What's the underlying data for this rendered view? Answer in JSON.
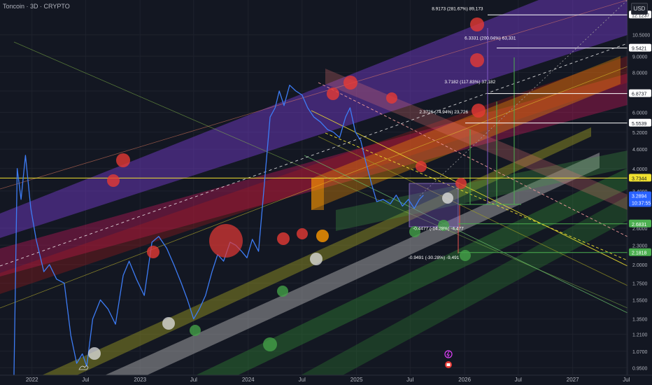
{
  "header": {
    "title": "Toncoin · 3D · CRYPTO",
    "currency": "USD"
  },
  "chart_data": {
    "type": "line",
    "symbol": "Toncoin",
    "interval": "3D",
    "exchange": "CRYPTO",
    "yscale": "log",
    "ylim": [
      0.9,
      13.5
    ],
    "xlim": [
      "2021-09-15",
      "2027-07-05"
    ],
    "x_ticks": [
      {
        "label": "2022",
        "date": "2022-01-01"
      },
      {
        "label": "Jul",
        "date": "2022-07-01"
      },
      {
        "label": "2023",
        "date": "2023-01-01"
      },
      {
        "label": "Jul",
        "date": "2023-07-01"
      },
      {
        "label": "2024",
        "date": "2024-01-01"
      },
      {
        "label": "Jul",
        "date": "2024-07-01"
      },
      {
        "label": "2025",
        "date": "2025-01-01"
      },
      {
        "label": "Jul",
        "date": "2025-07-01"
      },
      {
        "label": "2026",
        "date": "2026-01-01"
      },
      {
        "label": "Jul",
        "date": "2026-07-01"
      },
      {
        "label": "2027",
        "date": "2027-01-01"
      },
      {
        "label": "Jul",
        "date": "2027-07-01"
      }
    ],
    "y_ticks": [
      "10.5000",
      "9.0000",
      "8.0000",
      "7.0000",
      "6.0000",
      "5.2000",
      "4.6000",
      "4.0000",
      "3.4000",
      "2.6000",
      "2.3000",
      "2.0000",
      "1.7500",
      "1.5500",
      "1.3500",
      "1.2100",
      "1.0700",
      "0.9500"
    ],
    "price_labels": [
      {
        "text": "12.1237",
        "value": 12.1237,
        "bg": "#ffffff",
        "fg": "#131722"
      },
      {
        "text": "9.5421",
        "value": 9.5421,
        "bg": "#ffffff",
        "fg": "#131722"
      },
      {
        "text": "6.8737",
        "value": 6.8737,
        "bg": "#ffffff",
        "fg": "#131722"
      },
      {
        "text": "5.5539",
        "value": 5.5539,
        "bg": "#ffffff",
        "fg": "#131722"
      },
      {
        "text": "3.7344",
        "value": 3.7344,
        "bg": "#f0e130",
        "fg": "#131722"
      },
      {
        "text": "3.2894",
        "value": 3.2894,
        "bg": "#2962ff",
        "fg": "#ffffff",
        "sub": "10:37:55"
      },
      {
        "text": "2.6831",
        "value": 2.6831,
        "bg": "#4caf50",
        "fg": "#ffffff"
      },
      {
        "text": "2.1818",
        "value": 2.1818,
        "bg": "#4caf50",
        "fg": "#ffffff"
      }
    ],
    "annotations": [
      {
        "text": "8.9173 (281.67%) 89,173",
        "date": "2025-09-12",
        "value": 12.55,
        "color": "#ffffff"
      },
      {
        "text": "6.3331 (200.04%) 63,331",
        "date": "2026-01-01",
        "value": 10.15,
        "color": "#ffffff"
      },
      {
        "text": "3.7182 (117.83%) 37,182",
        "date": "2025-10-25",
        "value": 7.4,
        "color": "#ffffff"
      },
      {
        "text": "2.3726 (74.94%) 23,726",
        "date": "2025-08-01",
        "value": 5.95,
        "color": "#ffffff"
      },
      {
        "text": "-0.4477 (-14.28%) -4,477",
        "date": "2025-07-10",
        "value": 2.57,
        "color": "#ffffff"
      },
      {
        "text": "-0.9491 (-30.28%) -9,491",
        "date": "2025-06-25",
        "value": 2.08,
        "color": "#ffffff"
      }
    ],
    "series": [
      {
        "color": "#3d7cf5",
        "x": [
          "2021-10-05",
          "2021-11-01",
          "2021-11-12",
          "2021-11-25",
          "2021-12-10",
          "2021-12-28",
          "2022-01-15",
          "2022-02-10",
          "2022-03-01",
          "2022-03-25",
          "2022-04-20",
          "2022-05-12",
          "2022-06-01",
          "2022-06-20",
          "2022-07-05",
          "2022-07-25",
          "2022-08-20",
          "2022-09-15",
          "2022-10-10",
          "2022-11-05",
          "2022-11-25",
          "2022-12-20",
          "2023-01-15",
          "2023-02-10",
          "2023-03-05",
          "2023-04-01",
          "2023-04-25",
          "2023-05-20",
          "2023-06-10",
          "2023-07-01",
          "2023-07-20",
          "2023-08-10",
          "2023-09-01",
          "2023-09-20",
          "2023-10-10",
          "2023-11-01",
          "2023-11-20",
          "2023-12-10",
          "2023-12-28",
          "2024-01-15",
          "2024-02-05",
          "2024-02-25",
          "2024-03-15",
          "2024-04-01",
          "2024-04-15",
          "2024-05-01",
          "2024-05-20",
          "2024-06-10",
          "2024-07-01",
          "2024-07-20",
          "2024-08-10",
          "2024-09-01",
          "2024-09-25",
          "2024-10-15",
          "2024-11-05",
          "2024-11-25",
          "2024-12-10",
          "2024-12-28",
          "2025-01-15",
          "2025-02-01",
          "2025-02-20",
          "2025-03-10",
          "2025-04-01",
          "2025-04-25",
          "2025-05-15",
          "2025-06-05",
          "2025-06-25",
          "2025-07-15",
          "2025-08-01",
          "2025-08-15"
        ],
        "y": [
          0.9,
          0.88,
          4.0,
          3.2,
          4.4,
          3.0,
          2.4,
          1.9,
          2.0,
          1.8,
          1.75,
          1.2,
          0.98,
          1.05,
          0.96,
          1.35,
          1.55,
          1.45,
          1.3,
          1.85,
          2.05,
          1.8,
          1.6,
          2.35,
          2.45,
          2.25,
          2.0,
          1.75,
          1.55,
          1.35,
          1.45,
          1.6,
          1.9,
          2.15,
          2.05,
          2.35,
          2.3,
          2.2,
          2.1,
          2.4,
          2.2,
          3.6,
          5.8,
          6.2,
          7.0,
          6.3,
          7.3,
          7.0,
          6.8,
          6.2,
          5.8,
          5.6,
          5.3,
          5.2,
          5.0,
          5.8,
          6.2,
          5.2,
          4.9,
          4.2,
          3.6,
          3.15,
          3.2,
          3.1,
          3.3,
          3.05,
          3.2,
          3.0,
          3.2,
          3.3
        ]
      }
    ],
    "grid": true,
    "legend": "none"
  }
}
